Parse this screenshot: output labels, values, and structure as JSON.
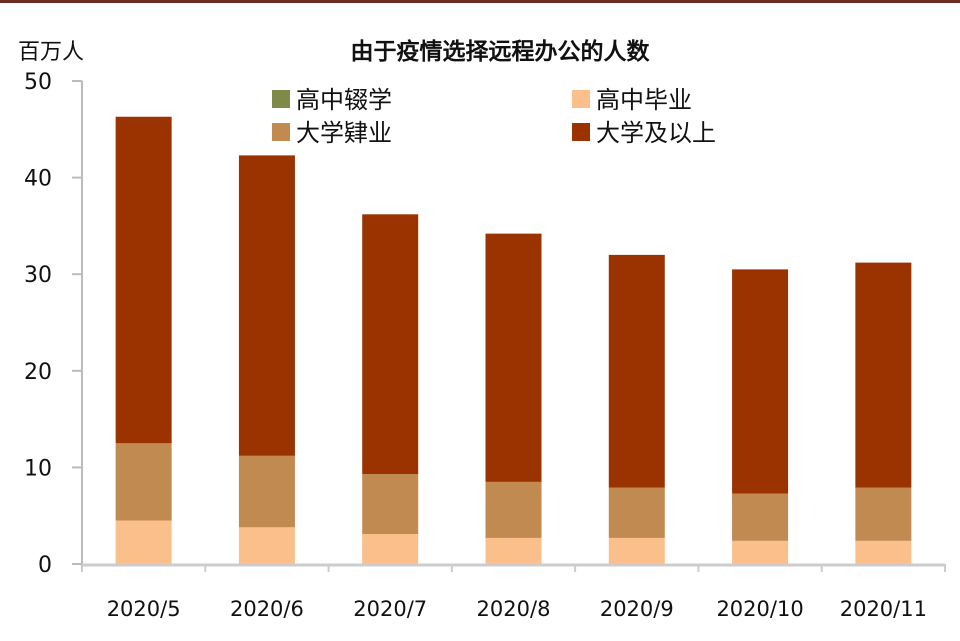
{
  "chart_data": {
    "type": "bar",
    "stacked": true,
    "title": "由于疫情选择远程办公的人数",
    "ylabel": "百万人",
    "xlabel": "",
    "ylim": [
      0,
      50
    ],
    "yticks": [
      0,
      10,
      20,
      30,
      40,
      50
    ],
    "grid": false,
    "legend_position": "top",
    "categories": [
      "2020/5",
      "2020/6",
      "2020/7",
      "2020/8",
      "2020/9",
      "2020/10",
      "2020/11"
    ],
    "series": [
      {
        "name": "高中辍学",
        "color": "#7f8a4a",
        "values": [
          0,
          0,
          0,
          0,
          0,
          0,
          0
        ]
      },
      {
        "name": "高中毕业",
        "color": "#fbbf8c",
        "values": [
          4.5,
          3.8,
          3.1,
          2.7,
          2.7,
          2.4,
          2.4
        ]
      },
      {
        "name": "大学肄业",
        "color": "#c08a50",
        "values": [
          8.0,
          7.4,
          6.2,
          5.8,
          5.2,
          4.9,
          5.5
        ]
      },
      {
        "name": "大学及以上",
        "color": "#9b3300",
        "values": [
          33.8,
          31.1,
          26.9,
          25.7,
          24.1,
          23.2,
          23.3
        ]
      }
    ]
  }
}
